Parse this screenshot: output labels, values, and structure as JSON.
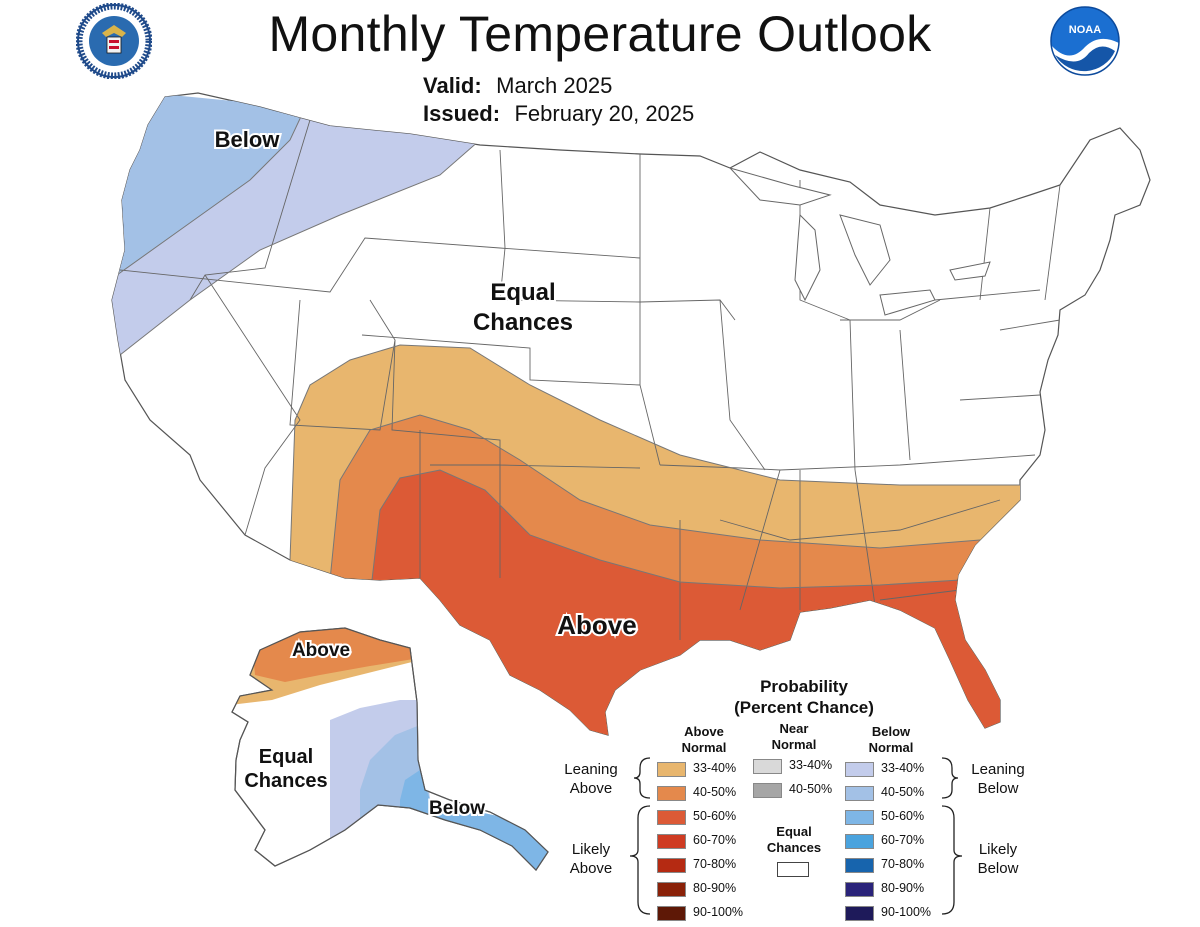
{
  "header": {
    "title": "Monthly Temperature Outlook",
    "valid_label": "Valid:",
    "valid_value": "March 2025",
    "issued_label": "Issued:",
    "issued_value": "February 20, 2025"
  },
  "logos": {
    "left": "Department of Commerce seal",
    "right_text": "NOAA"
  },
  "map": {
    "labels": {
      "below_nw": "Below",
      "equal_conus_1": "Equal",
      "equal_conus_2": "Chances",
      "above_south": "Above",
      "above_ak": "Above",
      "equal_ak_1": "Equal",
      "equal_ak_2": "Chances",
      "below_ak": "Below"
    }
  },
  "legend": {
    "title_1": "Probability",
    "title_2": "(Percent Chance)",
    "above_header_1": "Above",
    "above_header_2": "Normal",
    "near_header_1": "Near",
    "near_header_2": "Normal",
    "below_header_1": "Below",
    "below_header_2": "Normal",
    "leaning_above_1": "Leaning",
    "leaning_above_2": "Above",
    "likely_above_1": "Likely",
    "likely_above_2": "Above",
    "leaning_below_1": "Leaning",
    "leaning_below_2": "Below",
    "likely_below_1": "Likely",
    "likely_below_2": "Below",
    "equal_1": "Equal",
    "equal_2": "Chances",
    "above_bins": [
      {
        "label": "33-40%",
        "color": "#e8b66e"
      },
      {
        "label": "40-50%",
        "color": "#e4894c"
      },
      {
        "label": "50-60%",
        "color": "#dc5a36"
      },
      {
        "label": "60-70%",
        "color": "#cf3b22"
      },
      {
        "label": "70-80%",
        "color": "#b52a12"
      },
      {
        "label": "80-90%",
        "color": "#8a2108"
      },
      {
        "label": "90-100%",
        "color": "#5e1806"
      }
    ],
    "near_bins": [
      {
        "label": "33-40%",
        "color": "#d9d9d9"
      },
      {
        "label": "40-50%",
        "color": "#a6a6a6"
      }
    ],
    "below_bins": [
      {
        "label": "33-40%",
        "color": "#c3cceb"
      },
      {
        "label": "40-50%",
        "color": "#a3c1e6"
      },
      {
        "label": "50-60%",
        "color": "#7eb6e6"
      },
      {
        "label": "60-70%",
        "color": "#4aa3de"
      },
      {
        "label": "70-80%",
        "color": "#1764ad"
      },
      {
        "label": "80-90%",
        "color": "#2a237a"
      },
      {
        "label": "90-100%",
        "color": "#1e1a5a"
      }
    ]
  }
}
